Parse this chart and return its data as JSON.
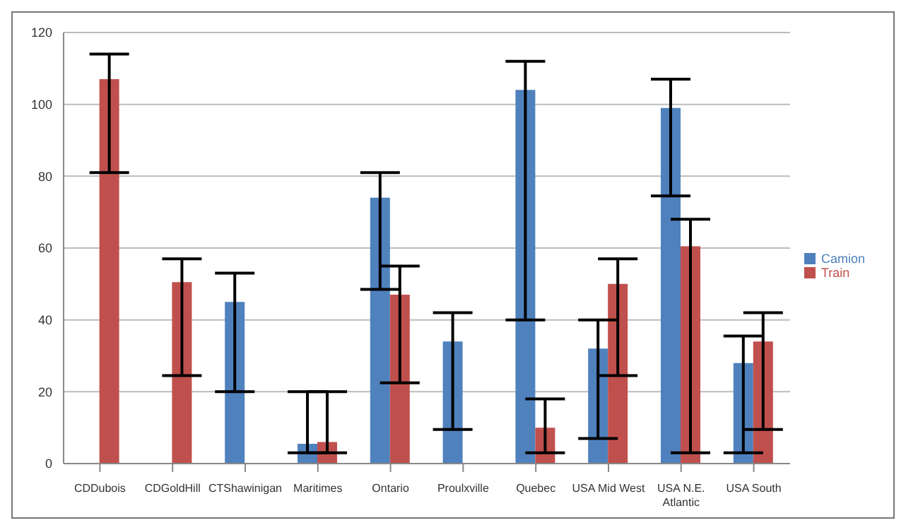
{
  "chart_data": {
    "type": "bar",
    "categories": [
      "CDDubois",
      "CDGoldHill",
      "CTShawinigan",
      "Maritimes",
      "Ontario",
      "Proulxville",
      "Quebec",
      "USA Mid West",
      "USA N.E. Atlantic",
      "USA South"
    ],
    "series": [
      {
        "name": "Camion",
        "color": "#4f81bd",
        "values": [
          null,
          null,
          45,
          5.5,
          74,
          34,
          104,
          32,
          99,
          28
        ],
        "errors": [
          null,
          null,
          [
            20,
            53
          ],
          [
            3,
            20
          ],
          [
            48.5,
            81
          ],
          [
            9.5,
            42
          ],
          [
            40,
            112
          ],
          [
            7,
            40
          ],
          [
            74.5,
            107
          ],
          [
            3,
            35.5
          ]
        ]
      },
      {
        "name": "Train",
        "color": "#c0504d",
        "values": [
          107,
          50.5,
          null,
          6,
          47,
          null,
          10,
          50,
          60.5,
          34
        ],
        "errors": [
          [
            81,
            114
          ],
          [
            24.5,
            57
          ],
          null,
          [
            3,
            20
          ],
          [
            22.5,
            55
          ],
          null,
          [
            3,
            18
          ],
          [
            24.5,
            57
          ],
          [
            3,
            68
          ],
          [
            9.5,
            42
          ]
        ]
      }
    ],
    "ylim": [
      0,
      120
    ],
    "yticks": [
      0,
      20,
      40,
      60,
      80,
      100,
      120
    ],
    "grid": "y",
    "legend": "right"
  }
}
